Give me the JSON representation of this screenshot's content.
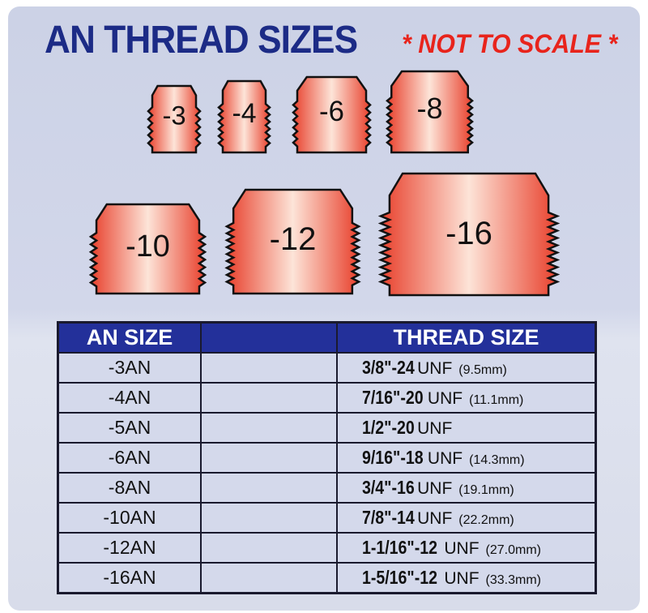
{
  "title": "AN THREAD SIZES",
  "note": "* NOT TO SCALE *",
  "colors": {
    "title": "#1c2b86",
    "note": "#e8241c",
    "header": "#23309a",
    "fitting_edge": "#e8402c",
    "fitting_center": "#fde4d8"
  },
  "fittings": [
    "-3",
    "-4",
    "-6",
    "-8",
    "-10",
    "-12",
    "-16"
  ],
  "table": {
    "headers": [
      "AN SIZE",
      "",
      "THREAD SIZE"
    ],
    "rows": [
      {
        "an": "-3AN",
        "thread": "3/8\"-24",
        "unf": "UNF",
        "mm": "(9.5mm)"
      },
      {
        "an": "-4AN",
        "thread": "7/16\"-20",
        "unf": "UNF",
        "mm": "(11.1mm)"
      },
      {
        "an": "-5AN",
        "thread": "1/2\"-20",
        "unf": "UNF",
        "mm": ""
      },
      {
        "an": "-6AN",
        "thread": "9/16\"-18",
        "unf": "UNF",
        "mm": "(14.3mm)"
      },
      {
        "an": "-8AN",
        "thread": "3/4\"-16",
        "unf": "UNF",
        "mm": "(19.1mm)"
      },
      {
        "an": "-10AN",
        "thread": "7/8\"-14",
        "unf": "UNF",
        "mm": "(22.2mm)"
      },
      {
        "an": "-12AN",
        "thread": "1-1/16\"-12",
        "unf": "UNF",
        "mm": "(27.0mm)"
      },
      {
        "an": "-16AN",
        "thread": "1-5/16\"-12",
        "unf": "UNF",
        "mm": "(33.3mm)"
      }
    ]
  }
}
